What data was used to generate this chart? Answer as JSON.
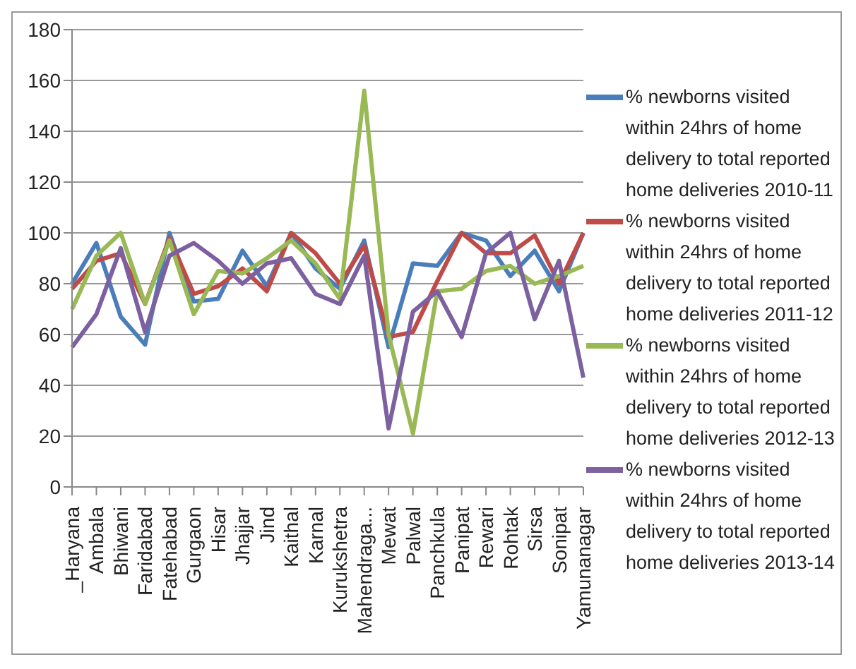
{
  "chart_data": {
    "type": "line",
    "categories": [
      "_Haryana",
      "Ambala",
      "Bhiwani",
      "Faridabad",
      "Fatehabad",
      "Gurgaon",
      "Hisar",
      "Jhajjar",
      "Jind",
      "Kaithal",
      "Karnal",
      "Kurukshetra",
      "Mahendraga...",
      "Mewat",
      "Palwal",
      "Panchkula",
      "Panipat",
      "Rewari",
      "Rohtak",
      "Sirsa",
      "Sonipat",
      "Yamunanagar"
    ],
    "series": [
      {
        "name": "% newborns visited within 24hrs of home delivery to total reported home deliveries 2010-11",
        "color": "#4a7ebb",
        "values": [
          80,
          96,
          67,
          56,
          100,
          73,
          74,
          93,
          79,
          100,
          86,
          78,
          97,
          55,
          88,
          87,
          100,
          97,
          83,
          93,
          77,
          100
        ]
      },
      {
        "name": "% newborns visited within 24hrs of home delivery to total reported home deliveries 2011-12",
        "color": "#be4b48",
        "values": [
          78,
          89,
          92,
          72,
          98,
          76,
          79,
          86,
          77,
          100,
          92,
          80,
          95,
          59,
          61,
          81,
          100,
          92,
          92,
          99,
          80,
          100
        ]
      },
      {
        "name": "% newborns visited within 24hrs of home delivery to total reported home deliveries 2012-13",
        "color": "#98b954",
        "values": [
          70,
          91,
          100,
          72,
          97,
          68,
          85,
          84,
          90,
          97,
          88,
          74,
          156,
          60,
          21,
          77,
          78,
          85,
          87,
          80,
          83,
          87
        ]
      },
      {
        "name": "% newborns visited within 24hrs of home delivery to total reported home deliveries 2013-14",
        "color": "#7d60a0",
        "values": [
          55,
          68,
          94,
          61,
          91,
          96,
          89,
          80,
          88,
          90,
          76,
          72,
          91,
          23,
          69,
          77,
          59,
          92,
          100,
          66,
          89,
          43
        ]
      }
    ],
    "ylim": [
      0,
      180
    ],
    "yticks": [
      0,
      20,
      40,
      60,
      80,
      100,
      120,
      140,
      160,
      180
    ],
    "grid": "y",
    "legend": "right",
    "marker": "none",
    "line_style": "solid"
  }
}
